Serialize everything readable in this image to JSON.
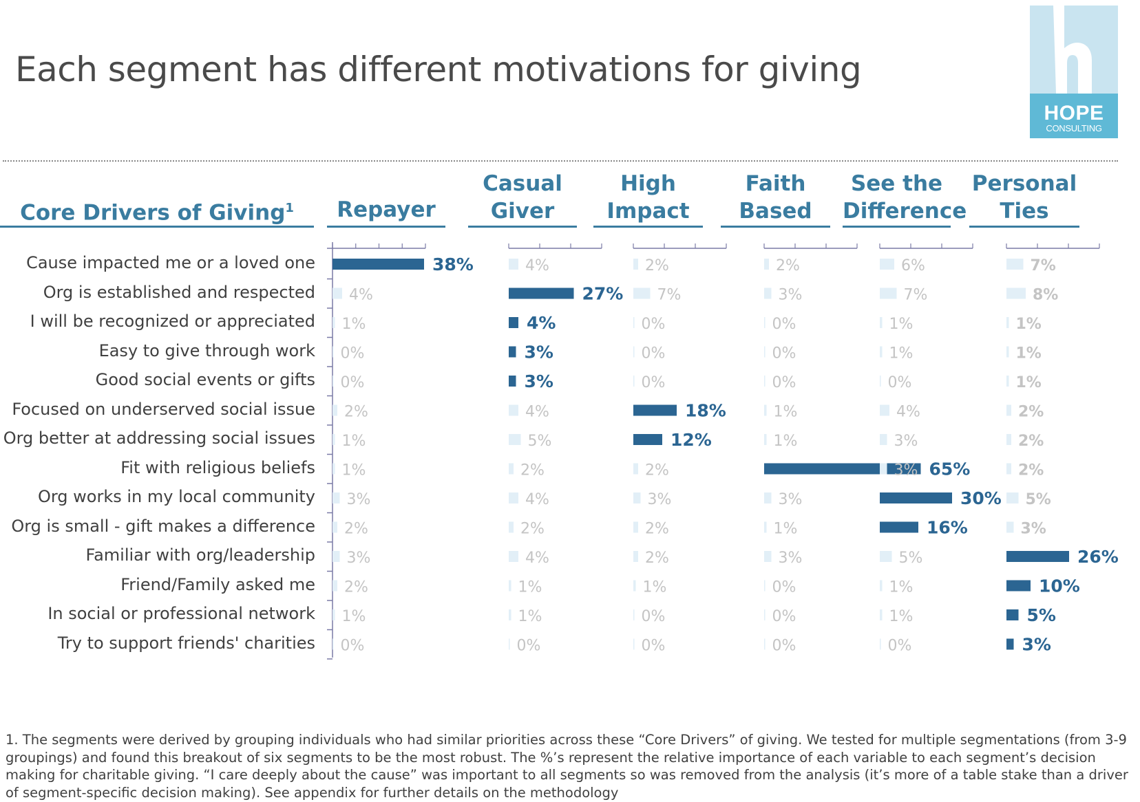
{
  "header": {
    "title": "Each segment has different motivations for giving",
    "logo_brand": "HOPE",
    "logo_sub": "CONSULTING"
  },
  "colors": {
    "highlight_bar": "#2b6592",
    "highlight_text": "#2b6592",
    "muted_bar": "#e2eff7",
    "muted_text": "#c4c4c4",
    "header_text": "#3a7ca0",
    "axis": "#7a7aa6"
  },
  "chart_data": {
    "type": "bar",
    "title": "Each segment has different motivations for giving",
    "row_header": "Core Drivers of Giving",
    "row_header_footnote_mark": "1",
    "categories": [
      "Cause impacted me or a loved one",
      "Org is established and respected",
      "I will be recognized or appreciated",
      "Easy to give through work",
      "Good social events or gifts",
      "Focused on underserved social issue",
      "Org better at addressing social issues",
      "Fit with religious beliefs",
      "Org works in my local community",
      "Org is small - gift makes a difference",
      "Familiar with org/leadership",
      "Friend/Family asked me",
      "In social or professional network",
      "Try to support friends' charities"
    ],
    "series": [
      {
        "name": "Repayer",
        "header_lines": [
          "Repayer"
        ],
        "values": [
          38,
          4,
          1,
          0,
          0,
          2,
          1,
          1,
          3,
          2,
          3,
          2,
          1,
          0
        ],
        "highlight": [
          true,
          false,
          false,
          false,
          false,
          false,
          false,
          false,
          false,
          false,
          false,
          false,
          false,
          false
        ]
      },
      {
        "name": "Casual Giver",
        "header_lines": [
          "Casual",
          "Giver"
        ],
        "values": [
          4,
          27,
          4,
          3,
          3,
          4,
          5,
          2,
          4,
          2,
          4,
          1,
          1,
          0
        ],
        "highlight": [
          false,
          true,
          true,
          true,
          true,
          false,
          false,
          false,
          false,
          false,
          false,
          false,
          false,
          false
        ]
      },
      {
        "name": "High Impact",
        "header_lines": [
          "High",
          "Impact"
        ],
        "values": [
          2,
          7,
          0,
          0,
          0,
          18,
          12,
          2,
          3,
          2,
          2,
          1,
          0,
          0
        ],
        "highlight": [
          false,
          false,
          false,
          false,
          false,
          true,
          true,
          false,
          false,
          false,
          false,
          false,
          false,
          false
        ]
      },
      {
        "name": "Faith Based",
        "header_lines": [
          "Faith",
          "Based"
        ],
        "values": [
          2,
          3,
          0,
          0,
          0,
          1,
          1,
          65,
          3,
          1,
          3,
          0,
          0,
          0
        ],
        "highlight": [
          false,
          false,
          false,
          false,
          false,
          false,
          false,
          true,
          false,
          false,
          false,
          false,
          false,
          false
        ]
      },
      {
        "name": "See the Difference",
        "header_lines": [
          "See the",
          "Difference"
        ],
        "values": [
          6,
          7,
          1,
          1,
          0,
          4,
          3,
          3,
          30,
          16,
          5,
          1,
          1,
          0
        ],
        "highlight": [
          false,
          false,
          false,
          false,
          false,
          false,
          false,
          false,
          true,
          true,
          false,
          false,
          false,
          false
        ]
      },
      {
        "name": "Personal Ties",
        "header_lines": [
          "Personal",
          "Ties"
        ],
        "values": [
          7,
          8,
          1,
          1,
          1,
          2,
          2,
          2,
          5,
          3,
          26,
          10,
          5,
          3
        ],
        "highlight": [
          false,
          false,
          false,
          false,
          false,
          false,
          false,
          false,
          false,
          false,
          true,
          true,
          true,
          true
        ]
      }
    ],
    "value_suffix": "%",
    "xlabel": "",
    "ylabel": "",
    "grid": false,
    "legend": "none"
  },
  "footnote": "1. The segments were derived by grouping individuals who had similar priorities across these “Core Drivers” of giving. We tested for multiple segmentations (from 3-9 groupings) and found this breakout of six segments to be the most robust. The %’s represent the relative importance of each variable to each segment’s decision making for charitable giving. “I care deeply about the cause” was important to all segments so was removed from the analysis (it’s more of a table stake than a driver of segment-specific decision making). See appendix for further details on the  methodology"
}
